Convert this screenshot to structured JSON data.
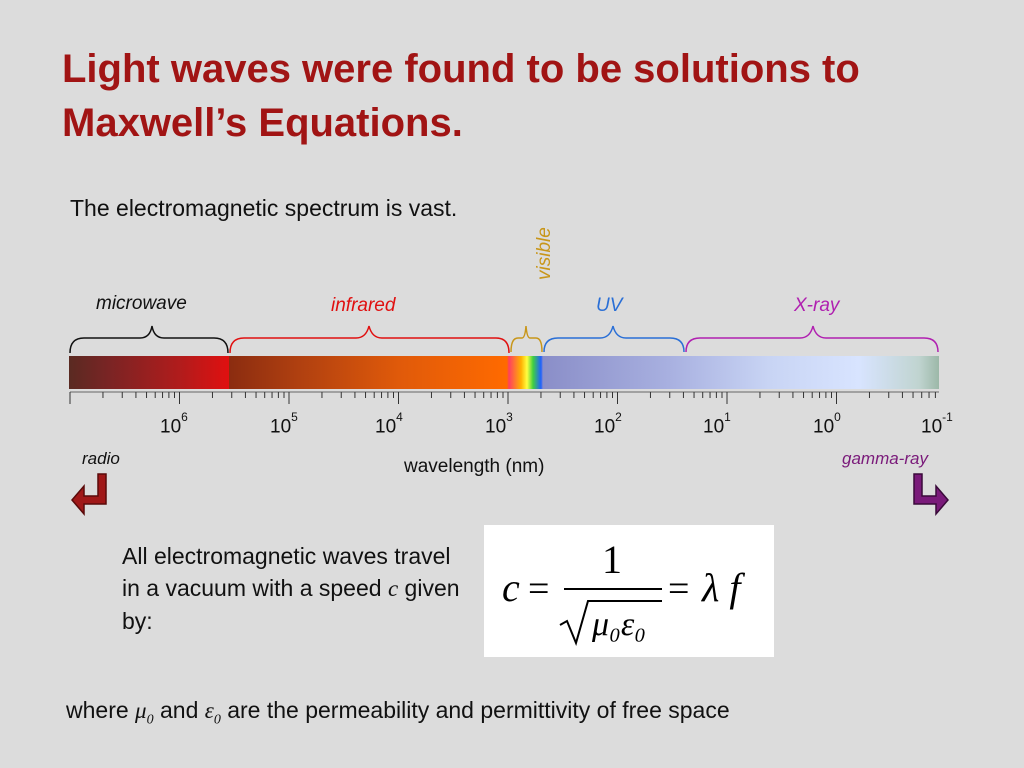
{
  "slide": {
    "title": "Light waves were found to be solutions to Maxwell’s Equations.",
    "subtitle": "The electromagnetic spectrum is vast."
  },
  "spectrum": {
    "bands": {
      "microwave": "microwave",
      "infrared": "infrared",
      "visible": "visible",
      "uv": "UV",
      "xray": "X-ray"
    },
    "ticks": [
      {
        "base": "10",
        "exp": "6"
      },
      {
        "base": "10",
        "exp": "5"
      },
      {
        "base": "10",
        "exp": "4"
      },
      {
        "base": "10",
        "exp": "3"
      },
      {
        "base": "10",
        "exp": "2"
      },
      {
        "base": "10",
        "exp": "1"
      },
      {
        "base": "10",
        "exp": "0"
      },
      {
        "base": "10",
        "exp": "-1"
      }
    ],
    "axis_label": "wavelength (nm)",
    "left_end": "radio",
    "right_end": "gamma-ray",
    "colors": {
      "microwave": "#111111",
      "infrared": "#e01010",
      "visible": "#c8961a",
      "uv": "#2a6fd6",
      "xray": "#b020b0",
      "radio_arrow": "#a01818",
      "gamma_arrow": "#7a1a7a"
    }
  },
  "body": {
    "line1": "All electromagnetic waves travel in a vacuum with a speed",
    "c_symbol": "c",
    "line2": "given by:"
  },
  "formula": {
    "lhs": "c",
    "eq": "=",
    "numerator": "1",
    "denominator": "μ₀ε₀",
    "rhs": "λ f"
  },
  "footnote": {
    "where": "where",
    "mu": "μ",
    "sub0": "0",
    "and": "and",
    "eps": "ε",
    "rest": "are the permeability and permittivity of free space"
  }
}
